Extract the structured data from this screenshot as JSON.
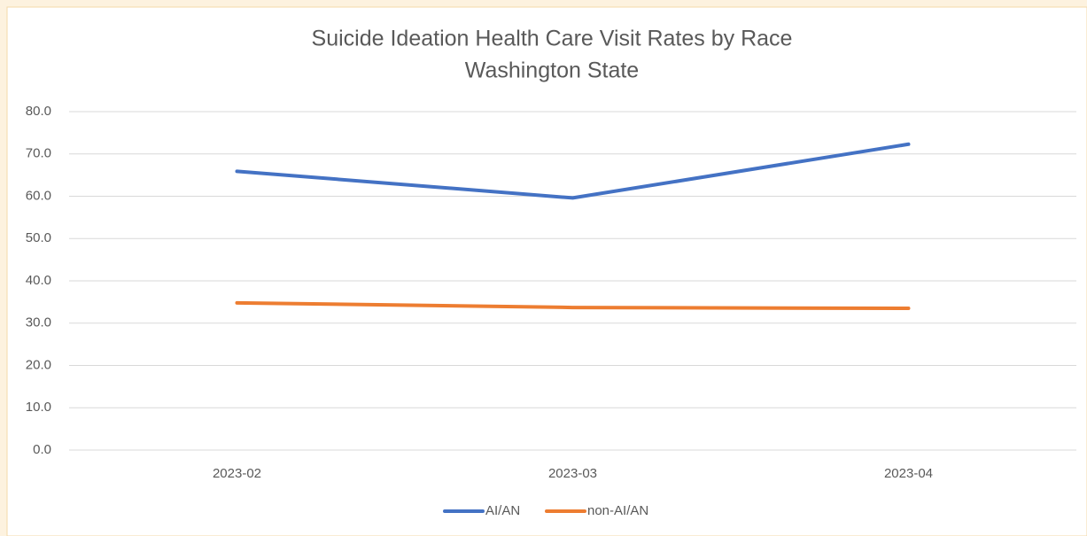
{
  "chart_data": {
    "type": "line",
    "title": "Suicide Ideation Health Care Visit Rates by Race",
    "subtitle": "Washington State",
    "categories": [
      "2023-02",
      "2023-03",
      "2023-04"
    ],
    "series": [
      {
        "name": "AI/AN",
        "color": "#4472c4",
        "values": [
          65.9,
          59.6,
          72.3
        ]
      },
      {
        "name": "non-AI/AN",
        "color": "#ed7d31",
        "values": [
          34.8,
          33.7,
          33.5
        ]
      }
    ],
    "ylim": [
      0,
      80
    ],
    "yticks": [
      {
        "value": 0,
        "label": "0.0"
      },
      {
        "value": 10,
        "label": "10.0"
      },
      {
        "value": 20,
        "label": "20.0"
      },
      {
        "value": 30,
        "label": "30.0"
      },
      {
        "value": 40,
        "label": "40.0"
      },
      {
        "value": 50,
        "label": "50.0"
      },
      {
        "value": 60,
        "label": "60.0"
      },
      {
        "value": 70,
        "label": "70.0"
      },
      {
        "value": 80,
        "label": "80.0"
      }
    ],
    "grid": true,
    "legend": "bottom"
  }
}
